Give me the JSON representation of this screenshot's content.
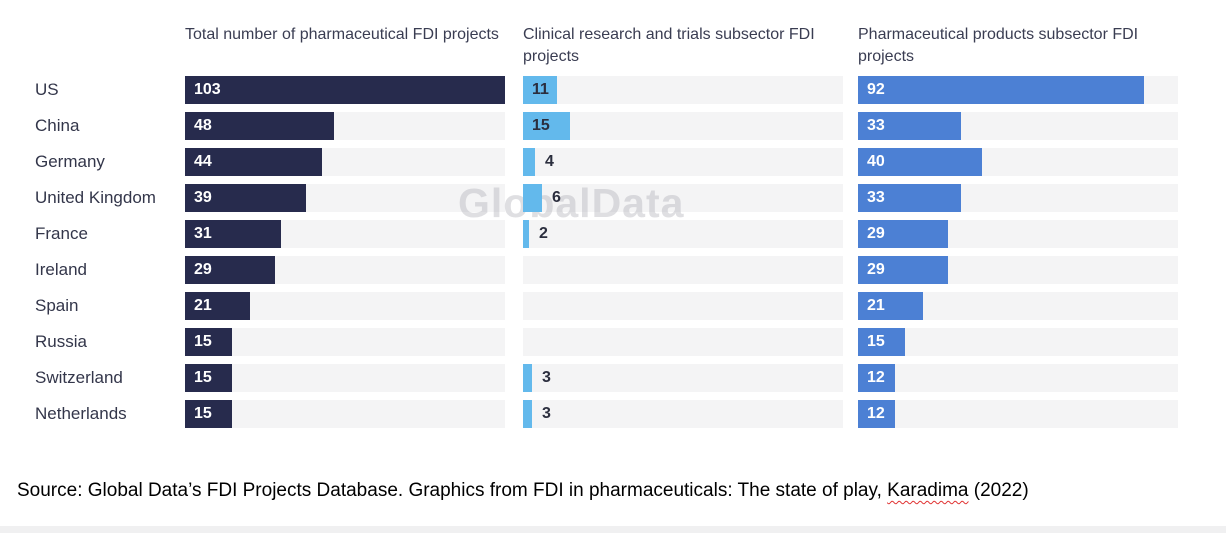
{
  "watermark": "GlobalData",
  "chart_data": {
    "type": "bar",
    "orientation": "horizontal",
    "title": "",
    "categories": [
      "US",
      "China",
      "Germany",
      "United Kingdom",
      "France",
      "Ireland",
      "Spain",
      "Russia",
      "Switzerland",
      "Netherlands"
    ],
    "series": [
      {
        "name": "Total number of pharmaceutical FDI projects",
        "values": [
          103,
          48,
          44,
          39,
          31,
          29,
          21,
          15,
          15,
          15
        ],
        "color": "#272b4d",
        "label_color": "#ffffff"
      },
      {
        "name": "Clinical research and trials subsector FDI projects",
        "values": [
          11,
          15,
          4,
          6,
          2,
          null,
          null,
          null,
          3,
          3
        ],
        "color": "#63b9ec",
        "label_color": "#2b2e3e"
      },
      {
        "name": "Pharmaceutical products subsector FDI projects",
        "values": [
          92,
          33,
          40,
          33,
          29,
          29,
          21,
          15,
          12,
          12
        ],
        "color": "#4c80d4",
        "label_color": "#ffffff"
      }
    ],
    "xlim": [
      0,
      103
    ],
    "grid": false,
    "legend_position": "column-headers",
    "track_color": "#f4f4f5",
    "data_labels": true
  },
  "source_line": {
    "prefix": "Source: Global Data’s FDI Projects Database. Graphics from FDI in pharmaceuticals: The state of play, ",
    "spellcheck_word": "Karadima",
    "suffix": " (2022)"
  }
}
